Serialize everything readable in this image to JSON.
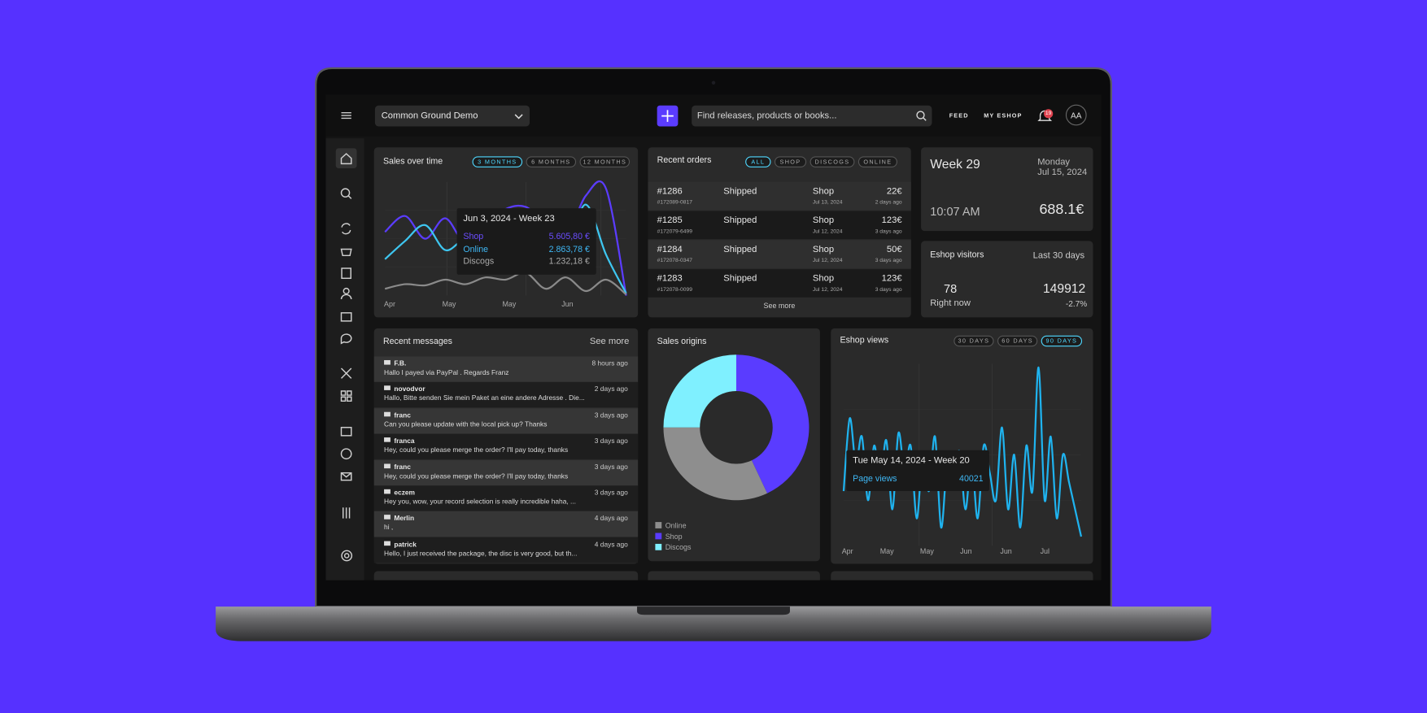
{
  "topbar": {
    "store": "Common Ground Demo",
    "search_placeholder": "Find releases, products or books...",
    "nav": [
      "FEED",
      "MY ESHOP"
    ],
    "notifications": "19",
    "avatar": "AA"
  },
  "recent_orders": {
    "title": "Recent orders",
    "filters": [
      "ALL",
      "SHOP",
      "DISCOGS",
      "ONLINE"
    ],
    "rows": [
      {
        "id": "#1286",
        "ref": "#172089-0817",
        "status": "Shipped",
        "channel": "Shop",
        "date": "Jul 13, 2024",
        "amount": "22€",
        "ago": "2 days ago"
      },
      {
        "id": "#1285",
        "ref": "#172079-6499",
        "status": "Shipped",
        "channel": "Shop",
        "date": "Jul 12, 2024",
        "amount": "123€",
        "ago": "3 days ago"
      },
      {
        "id": "#1284",
        "ref": "#172078-0347",
        "status": "Shipped",
        "channel": "Shop",
        "date": "Jul 12, 2024",
        "amount": "50€",
        "ago": "3 days ago"
      },
      {
        "id": "#1283",
        "ref": "#172078-0099",
        "status": "Shipped",
        "channel": "Shop",
        "date": "Jul 12, 2024",
        "amount": "123€",
        "ago": "3 days ago"
      }
    ],
    "see_more": "See more"
  },
  "week": {
    "title": "Week 29",
    "day": "Monday",
    "date": "Jul 15, 2024",
    "time": "10:07 AM",
    "revenue": "688.1€"
  },
  "visitors": {
    "title": "Eshop visitors",
    "period": "Last 30 days",
    "now": "78",
    "now_label": "Right now",
    "total": "149912",
    "change": "-2.7%"
  },
  "recent_messages": {
    "title": "Recent messages",
    "see_more": "See more",
    "items": [
      {
        "from": "F.B.",
        "time": "8 hours ago",
        "text": "Hallo I payed via PayPal . Regards Franz"
      },
      {
        "from": "novodvor",
        "time": "2 days ago",
        "text": "Hallo,  Bitte senden Sie mein Paket an eine andere Adresse . Die..."
      },
      {
        "from": "franc",
        "time": "3 days ago",
        "text": "Can you please update with the local pick up? Thanks"
      },
      {
        "from": "franca",
        "time": "3 days ago",
        "text": "Hey, could you please merge the order? I'll pay today, thanks"
      },
      {
        "from": "franc",
        "time": "3 days ago",
        "text": "Hey, could you please merge the order? I'll pay today, thanks"
      },
      {
        "from": "eczem",
        "time": "3 days ago",
        "text": "Hey you,  wow, your record selection is really incredible haha, ..."
      },
      {
        "from": "Merlin",
        "time": "4 days ago",
        "text": "hi ,"
      },
      {
        "from": "patrick",
        "time": "4 days ago",
        "text": "Hello, I just received the package, the disc is very good, but th..."
      }
    ]
  },
  "chart_data": [
    {
      "type": "line",
      "title": "Sales over time",
      "ranges": [
        "3 MONTHS",
        "6 MONTHS",
        "12 MONTHS"
      ],
      "x_labels": [
        "Apr",
        "May",
        "May",
        "Jun"
      ],
      "series": [
        {
          "name": "Shop",
          "color": "#5b3cff",
          "values": [
            56,
            70,
            50,
            68,
            46,
            60,
            76,
            78,
            64,
            52,
            88,
            94,
            0
          ]
        },
        {
          "name": "Online",
          "color": "#3ec6f0",
          "values": [
            32,
            48,
            62,
            40,
            50,
            44,
            56,
            50,
            68,
            44,
            80,
            36,
            2
          ]
        },
        {
          "name": "Discogs",
          "color": "#8a8a8a",
          "values": [
            6,
            10,
            9,
            14,
            10,
            16,
            14,
            20,
            6,
            16,
            4,
            14,
            1
          ]
        }
      ],
      "tooltip": {
        "title": "Jun 3, 2024 - Week 23",
        "values": [
          "5.605,80 €",
          "2.863,78 €",
          "1.232,18 €"
        ]
      }
    },
    {
      "type": "pie",
      "title": "Sales origins",
      "categories": [
        "Online",
        "Shop",
        "Discogs"
      ],
      "values": [
        32,
        43,
        25
      ],
      "colors": [
        "#8e8e8e",
        "#5a3cff",
        "#7ff0ff"
      ]
    },
    {
      "type": "line",
      "title": "Eshop views",
      "ranges": [
        "30 DAYS",
        "60 DAYS",
        "90 DAYS"
      ],
      "x_labels": [
        "Apr",
        "May",
        "May",
        "Jun",
        "Jun",
        "Jul"
      ],
      "series": [
        {
          "name": "Page views",
          "color": "#1fb3ef",
          "values": [
            30,
            70,
            45,
            60,
            25,
            55,
            35,
            58,
            20,
            62,
            40,
            55,
            15,
            50,
            30,
            60,
            10,
            45,
            35,
            52,
            20,
            48,
            15,
            55,
            40,
            25,
            65,
            20,
            50,
            10,
            55,
            30,
            98,
            25,
            60,
            15,
            50,
            35,
            20,
            5
          ]
        }
      ],
      "tooltip": {
        "title": "Tue May 14, 2024 - Week 20",
        "value": "40021"
      }
    }
  ]
}
